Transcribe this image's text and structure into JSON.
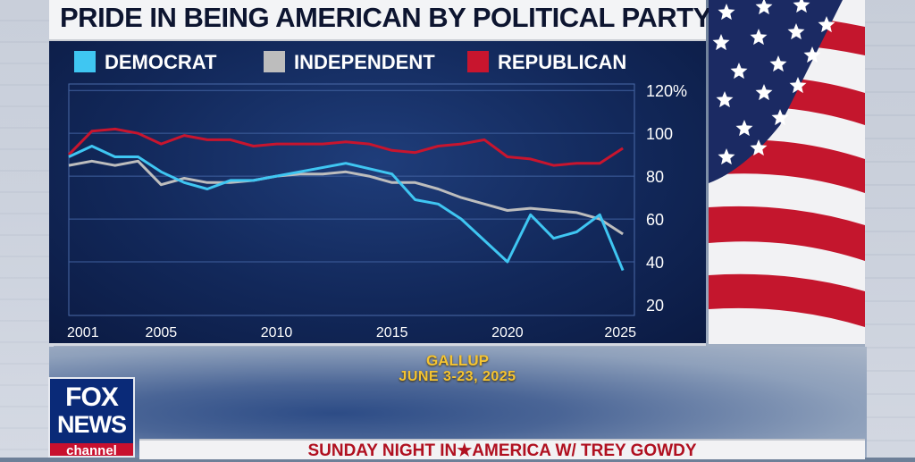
{
  "title": "PRIDE IN BEING AMERICAN BY POLITICAL PARTY",
  "source": {
    "line1": "GALLUP",
    "line2": "JUNE 3-23, 2025"
  },
  "network": {
    "line1": "FOX",
    "line2": "NEWS",
    "line3": "channel"
  },
  "show_name": "SUNDAY NIGHT IN★AMERICA W/ TREY GOWDY",
  "colors": {
    "democrat": "#3fc6f2",
    "independent": "#bdbdbd",
    "republican": "#c8152e",
    "panel": "#12285a",
    "flag_red": "#c4162d",
    "flag_blue": "#1b2a63"
  },
  "chart_data": {
    "type": "line",
    "x_ticks": [
      2001,
      2005,
      2010,
      2015,
      2020,
      2025
    ],
    "y_ticks": [
      "120%",
      "100",
      "80",
      "60",
      "40",
      "20"
    ],
    "y_tick_values": [
      120,
      100,
      80,
      60,
      40,
      20
    ],
    "ylim": [
      15,
      123
    ],
    "xlim": [
      2001,
      2025.5
    ],
    "grid": "horizontal",
    "legend_position": "top",
    "series": [
      {
        "name": "DEMOCRAT",
        "color": "#3fc6f2",
        "x": [
          2001,
          2002,
          2003,
          2004,
          2005,
          2006,
          2007,
          2008,
          2009,
          2013,
          2015,
          2016,
          2017,
          2018,
          2020,
          2021,
          2022,
          2023,
          2024,
          2025
        ],
        "y": [
          89,
          94,
          89,
          89,
          82,
          77,
          74,
          78,
          78,
          86,
          81,
          69,
          67,
          60,
          40,
          62,
          51,
          54,
          62,
          36
        ]
      },
      {
        "name": "INDEPENDENT",
        "color": "#bdbdbd",
        "x": [
          2001,
          2002,
          2003,
          2004,
          2005,
          2006,
          2007,
          2008,
          2009,
          2010,
          2011,
          2012,
          2013,
          2014,
          2015,
          2016,
          2017,
          2018,
          2019,
          2020,
          2021,
          2022,
          2023,
          2024,
          2025
        ],
        "y": [
          85,
          87,
          85,
          87,
          76,
          79,
          77,
          77,
          78,
          80,
          81,
          81,
          82,
          80,
          77,
          77,
          74,
          70,
          67,
          64,
          65,
          64,
          63,
          60,
          53
        ]
      },
      {
        "name": "REPUBLICAN",
        "color": "#c8152e",
        "x": [
          2001,
          2002,
          2003,
          2004,
          2005,
          2006,
          2007,
          2008,
          2009,
          2010,
          2011,
          2012,
          2013,
          2014,
          2015,
          2016,
          2017,
          2018,
          2019,
          2020,
          2021,
          2022,
          2023,
          2024,
          2025
        ],
        "y": [
          90,
          101,
          102,
          100,
          95,
          99,
          97,
          97,
          94,
          95,
          95,
          95,
          96,
          95,
          92,
          91,
          94,
          95,
          97,
          89,
          88,
          85,
          86,
          86,
          93
        ]
      }
    ]
  }
}
